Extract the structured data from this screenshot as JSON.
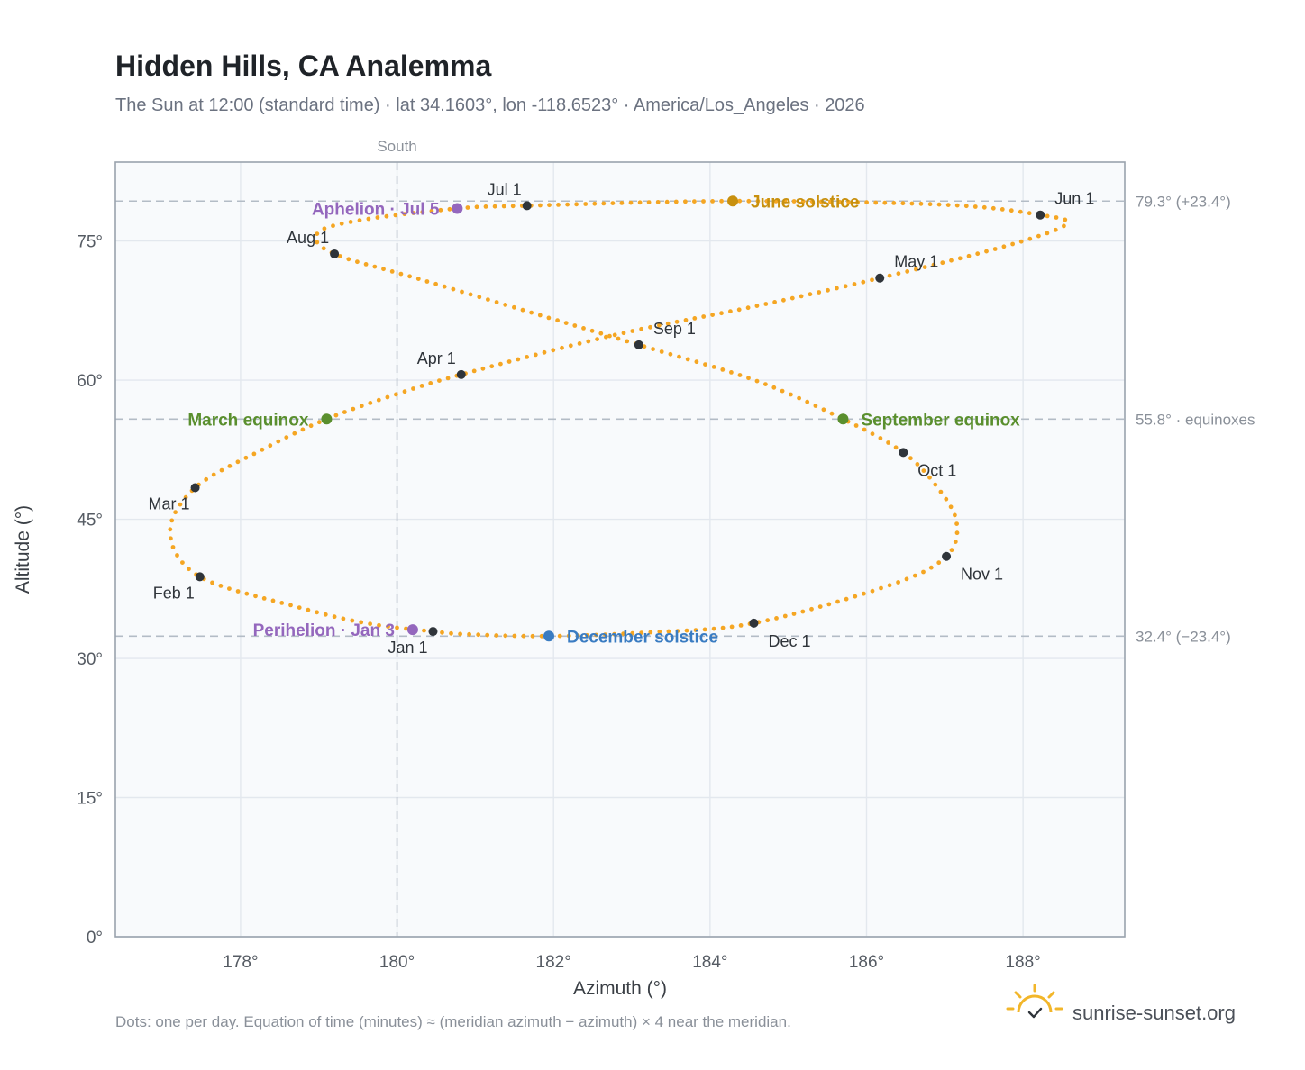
{
  "title": "Hidden Hills, CA Analemma",
  "subtitle": "The Sun at 12:00 (standard time) · lat 34.1603°, lon -118.6523° · America/Los_Angeles · 2026",
  "footnote": "Dots: one per day. Equation of time (minutes) ≈ (meridian azimuth − azimuth) × 4 near the meridian.",
  "brand": {
    "name": "sunrise-sunset.org",
    "icon": "sun-logo-icon",
    "color": "#f2b62a"
  },
  "colors": {
    "path": "#f5a623",
    "month_marker": "#2f343a",
    "solstice_june": "#c8900e",
    "solstice_december": "#3a7cc2",
    "equinox": "#5a8f2e",
    "apsis": "#9467bd",
    "reference_line": "#b3bcc6",
    "plot_bg": "#f8fafc",
    "grid": "#e3e8ee"
  },
  "chart_data": {
    "type": "scatter",
    "xlabel": "Azimuth (°)",
    "ylabel": "Altitude (°)",
    "xlim": [
      176.4,
      189.3
    ],
    "ylim": [
      0,
      83.5
    ],
    "x_ticks": [
      178,
      180,
      182,
      184,
      186,
      188
    ],
    "x_tick_labels": [
      "178°",
      "180°",
      "182°",
      "184°",
      "186°",
      "188°"
    ],
    "y_ticks": [
      0,
      15,
      30,
      45,
      60,
      75
    ],
    "y_tick_labels": [
      "0°",
      "15°",
      "30°",
      "45°",
      "60°",
      "75°"
    ],
    "grid": true,
    "meridian": {
      "azimuth": 180,
      "label": "South"
    },
    "reference_lines": [
      {
        "altitude": 79.3,
        "label": "79.3° (+23.4°)"
      },
      {
        "altitude": 55.8,
        "label": "55.8° · equinoxes"
      },
      {
        "altitude": 32.4,
        "label": "32.4° (−23.4°)"
      }
    ],
    "path_keypoints": [
      {
        "x": 180.46,
        "y": 32.9
      },
      {
        "x": 179.6,
        "y": 33.8
      },
      {
        "x": 178.7,
        "y": 35.6
      },
      {
        "x": 177.48,
        "y": 38.8
      },
      {
        "x": 177.1,
        "y": 43.5
      },
      {
        "x": 177.42,
        "y": 48.4
      },
      {
        "x": 178.3,
        "y": 52.6
      },
      {
        "x": 179.1,
        "y": 55.8
      },
      {
        "x": 180.0,
        "y": 58.5
      },
      {
        "x": 180.82,
        "y": 60.6
      },
      {
        "x": 182.8,
        "y": 64.9
      },
      {
        "x": 184.6,
        "y": 68.0
      },
      {
        "x": 186.17,
        "y": 71.0
      },
      {
        "x": 187.8,
        "y": 74.5
      },
      {
        "x": 188.55,
        "y": 76.8
      },
      {
        "x": 188.22,
        "y": 77.8
      },
      {
        "x": 187.0,
        "y": 78.9
      },
      {
        "x": 184.29,
        "y": 79.3
      },
      {
        "x": 181.66,
        "y": 78.8
      },
      {
        "x": 180.77,
        "y": 78.5
      },
      {
        "x": 179.5,
        "y": 77.2
      },
      {
        "x": 178.98,
        "y": 75.8
      },
      {
        "x": 179.2,
        "y": 73.6
      },
      {
        "x": 180.4,
        "y": 70.6
      },
      {
        "x": 183.09,
        "y": 63.8
      },
      {
        "x": 184.6,
        "y": 59.9
      },
      {
        "x": 185.7,
        "y": 55.8
      },
      {
        "x": 186.47,
        "y": 52.2
      },
      {
        "x": 186.9,
        "y": 48.5
      },
      {
        "x": 187.15,
        "y": 44.7
      },
      {
        "x": 187.02,
        "y": 41.0
      },
      {
        "x": 186.3,
        "y": 37.9
      },
      {
        "x": 184.56,
        "y": 33.8
      },
      {
        "x": 183.2,
        "y": 32.8
      },
      {
        "x": 181.94,
        "y": 32.4
      },
      {
        "x": 180.9,
        "y": 32.6
      },
      {
        "x": 180.46,
        "y": 32.9
      }
    ],
    "month_markers": [
      {
        "label": "Jan 1",
        "x": 180.46,
        "y": 32.9,
        "pos": "below-left"
      },
      {
        "label": "Feb 1",
        "x": 177.48,
        "y": 38.8,
        "pos": "below-left"
      },
      {
        "label": "Mar 1",
        "x": 177.42,
        "y": 48.4,
        "pos": "below-left"
      },
      {
        "label": "Apr 1",
        "x": 180.82,
        "y": 60.6,
        "pos": "above-left"
      },
      {
        "label": "May 1",
        "x": 186.17,
        "y": 71.0,
        "pos": "above-right"
      },
      {
        "label": "Jun 1",
        "x": 188.22,
        "y": 77.8,
        "pos": "above-right"
      },
      {
        "label": "Jul 1",
        "x": 181.66,
        "y": 78.8,
        "pos": "above-left"
      },
      {
        "label": "Aug 1",
        "x": 179.2,
        "y": 73.6,
        "pos": "above-left"
      },
      {
        "label": "Sep 1",
        "x": 183.09,
        "y": 63.8,
        "pos": "above-right"
      },
      {
        "label": "Oct 1",
        "x": 186.47,
        "y": 52.2,
        "pos": "below-right"
      },
      {
        "label": "Nov 1",
        "x": 187.02,
        "y": 41.0,
        "pos": "below-right"
      },
      {
        "label": "Dec 1",
        "x": 184.56,
        "y": 33.8,
        "pos": "below-right"
      }
    ],
    "events": [
      {
        "label": "June solstice",
        "x": 184.29,
        "y": 79.3,
        "color": "#c8900e",
        "anchor": "start"
      },
      {
        "label": "December solstice",
        "x": 181.94,
        "y": 32.4,
        "color": "#3a7cc2",
        "anchor": "start"
      },
      {
        "label": "March equinox",
        "x": 179.1,
        "y": 55.8,
        "color": "#5a8f2e",
        "anchor": "end"
      },
      {
        "label": "September equinox",
        "x": 185.7,
        "y": 55.8,
        "color": "#5a8f2e",
        "anchor": "start"
      },
      {
        "label": "Aphelion · Jul 5",
        "x": 180.77,
        "y": 78.5,
        "color": "#9467bd",
        "anchor": "end"
      },
      {
        "label": "Perihelion · Jan 3",
        "x": 180.2,
        "y": 33.1,
        "color": "#9467bd",
        "anchor": "end"
      }
    ]
  }
}
